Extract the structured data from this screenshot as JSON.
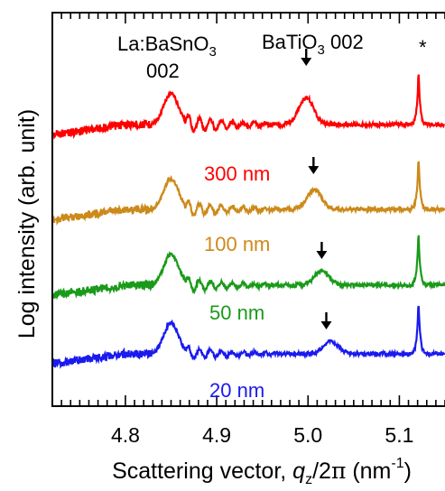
{
  "chart_data": {
    "type": "line",
    "title": "",
    "xlabel": {
      "main": "Scattering vector, ",
      "var": "q",
      "sub": "z",
      "mid": "/2",
      "pi": "π",
      "unit_open": " (nm",
      "sup": "-1",
      "unit_close": ")"
    },
    "ylabel": "Log intensity (arb. unit)",
    "xlim": [
      4.72,
      5.15
    ],
    "x_ticks": [
      4.8,
      4.9,
      5.0,
      5.1
    ],
    "x_tick_labels": [
      "4.8",
      "4.9",
      "5.0",
      "5.1"
    ],
    "y_log_scale": true,
    "y_ticks_labeled": false,
    "grid": false,
    "legend": "none (series labeled inline)",
    "substrate_peak_x": 4.85,
    "substrate_peak_marker": "*",
    "substrate_peak_marker_x": 5.12,
    "annotations": {
      "lbso_line1_a": "La:BaSnO",
      "lbso_line1_sub": "3",
      "lbso_line2": "002",
      "bto_a": "BaTiO",
      "bto_sub": "3",
      "bto_b": " 002",
      "star": "*"
    },
    "series": [
      {
        "name": "300 nm",
        "color": "#ff0000",
        "bto_peak_x": 4.998,
        "arrow_x": 4.998,
        "offset_level": 3
      },
      {
        "name": "100 nm",
        "color": "#cc8a1a",
        "bto_peak_x": 5.007,
        "arrow_x": 5.006,
        "offset_level": 2
      },
      {
        "name": "50 nm",
        "color": "#1a9a1a",
        "bto_peak_x": 5.015,
        "arrow_x": 5.015,
        "offset_level": 1
      },
      {
        "name": "20 nm",
        "color": "#1a1aee",
        "bto_peak_x": 5.025,
        "arrow_x": 5.02,
        "offset_level": 0
      }
    ]
  }
}
